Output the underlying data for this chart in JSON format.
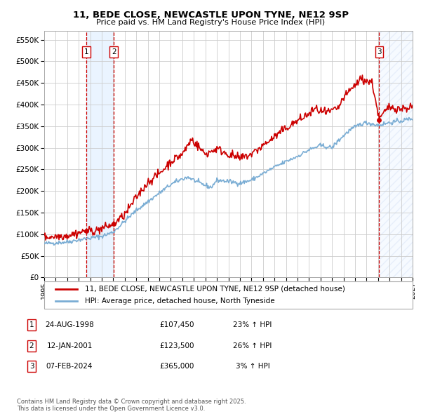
{
  "title_line1": "11, BEDE CLOSE, NEWCASTLE UPON TYNE, NE12 9SP",
  "title_line2": "Price paid vs. HM Land Registry's House Price Index (HPI)",
  "background_color": "#ffffff",
  "grid_color": "#cccccc",
  "hpi_color": "#7aadd4",
  "price_color": "#cc0000",
  "transactions": [
    {
      "num": 1,
      "date_str": "24-AUG-1998",
      "price": 107450,
      "pct": "23%",
      "date_x": 1998.65
    },
    {
      "num": 2,
      "date_str": "12-JAN-2001",
      "price": 123500,
      "pct": "26%",
      "date_x": 2001.04
    },
    {
      "num": 3,
      "date_str": "07-FEB-2024",
      "price": 365000,
      "pct": "3%",
      "date_x": 2024.1
    }
  ],
  "xmin": 1995.0,
  "xmax": 2027.0,
  "ymin": 0,
  "ymax": 570000,
  "yticks": [
    0,
    50000,
    100000,
    150000,
    200000,
    250000,
    300000,
    350000,
    400000,
    450000,
    500000,
    550000
  ],
  "xticks": [
    1995,
    1996,
    1997,
    1998,
    1999,
    2000,
    2001,
    2002,
    2003,
    2004,
    2005,
    2006,
    2007,
    2008,
    2009,
    2010,
    2011,
    2012,
    2013,
    2014,
    2015,
    2016,
    2017,
    2018,
    2019,
    2020,
    2021,
    2022,
    2023,
    2024,
    2025,
    2026,
    2027
  ],
  "legend_label_red": "11, BEDE CLOSE, NEWCASTLE UPON TYNE, NE12 9SP (detached house)",
  "legend_label_blue": "HPI: Average price, detached house, North Tyneside",
  "footer": "Contains HM Land Registry data © Crown copyright and database right 2025.\nThis data is licensed under the Open Government Licence v3.0.",
  "shade_color": "#ddeeff",
  "hatch_color": "#aabbdd",
  "num_box_color": "#cc0000",
  "hpi_anchors_x": [
    1995.0,
    1996.0,
    1997.0,
    1998.0,
    1999.0,
    2000.0,
    2001.0,
    2002.0,
    2003.0,
    2004.0,
    2005.0,
    2006.0,
    2007.0,
    2007.5,
    2008.5,
    2009.5,
    2010.0,
    2011.0,
    2012.0,
    2013.0,
    2014.0,
    2015.0,
    2016.0,
    2017.0,
    2018.0,
    2019.0,
    2020.0,
    2020.5,
    2021.5,
    2022.5,
    2023.0,
    2024.0,
    2025.0,
    2026.0,
    2027.0
  ],
  "hpi_anchors_y": [
    78000,
    80000,
    82000,
    87000,
    91000,
    95000,
    105000,
    130000,
    155000,
    175000,
    195000,
    215000,
    228000,
    232000,
    218000,
    208000,
    225000,
    222000,
    218000,
    225000,
    240000,
    255000,
    268000,
    280000,
    295000,
    305000,
    300000,
    315000,
    340000,
    355000,
    358000,
    352000,
    358000,
    362000,
    368000
  ],
  "price_anchors_x": [
    1995.0,
    1996.0,
    1997.0,
    1998.65,
    1999.5,
    2001.04,
    2002.0,
    2003.0,
    2004.0,
    2005.0,
    2006.0,
    2007.0,
    2007.8,
    2009.0,
    2010.0,
    2011.0,
    2012.0,
    2013.0,
    2014.0,
    2015.0,
    2016.0,
    2017.0,
    2018.0,
    2018.5,
    2019.5,
    2020.5,
    2021.0,
    2022.0,
    2022.5,
    2023.5,
    2024.1,
    2024.5,
    2025.0,
    2026.0,
    2027.0
  ],
  "price_anchors_y": [
    93000,
    95000,
    97000,
    107450,
    108000,
    123500,
    145000,
    185000,
    220000,
    240000,
    268000,
    285000,
    320000,
    285000,
    298000,
    285000,
    275000,
    285000,
    305000,
    325000,
    345000,
    362000,
    378000,
    390000,
    380000,
    390000,
    415000,
    445000,
    460000,
    450000,
    365000,
    380000,
    395000,
    390000,
    395000
  ]
}
